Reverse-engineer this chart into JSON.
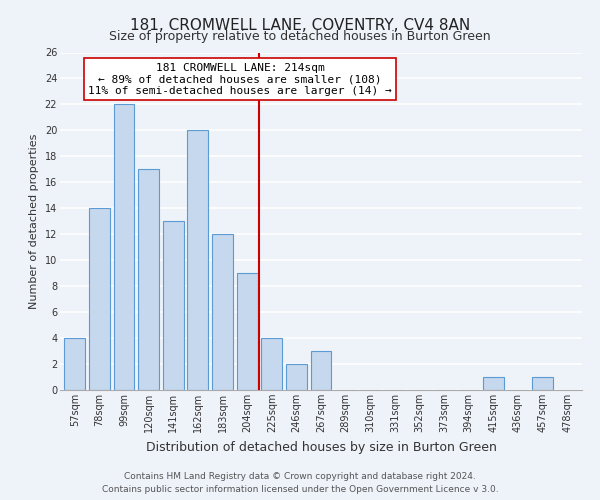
{
  "title": "181, CROMWELL LANE, COVENTRY, CV4 8AN",
  "subtitle": "Size of property relative to detached houses in Burton Green",
  "xlabel": "Distribution of detached houses by size in Burton Green",
  "ylabel": "Number of detached properties",
  "bar_labels": [
    "57sqm",
    "78sqm",
    "99sqm",
    "120sqm",
    "141sqm",
    "162sqm",
    "183sqm",
    "204sqm",
    "225sqm",
    "246sqm",
    "267sqm",
    "289sqm",
    "310sqm",
    "331sqm",
    "352sqm",
    "373sqm",
    "394sqm",
    "415sqm",
    "436sqm",
    "457sqm",
    "478sqm"
  ],
  "bar_values": [
    4,
    14,
    22,
    17,
    13,
    20,
    12,
    9,
    4,
    2,
    3,
    0,
    0,
    0,
    0,
    0,
    0,
    1,
    0,
    1,
    0
  ],
  "bar_color": "#c5d8ed",
  "bar_edge_color": "#5b9bd5",
  "vline_x": 7.5,
  "vline_color": "#cc0000",
  "annotation_line1": "181 CROMWELL LANE: 214sqm",
  "annotation_line2": "← 89% of detached houses are smaller (108)",
  "annotation_line3": "11% of semi-detached houses are larger (14) →",
  "annotation_box_edge_color": "#cc0000",
  "annotation_box_face_color": "#ffffff",
  "ylim": [
    0,
    26
  ],
  "yticks": [
    0,
    2,
    4,
    6,
    8,
    10,
    12,
    14,
    16,
    18,
    20,
    22,
    24,
    26
  ],
  "footer_text": "Contains HM Land Registry data © Crown copyright and database right 2024.\nContains public sector information licensed under the Open Government Licence v 3.0.",
  "background_color": "#eef2f9",
  "grid_color": "#ffffff",
  "title_fontsize": 11,
  "subtitle_fontsize": 9,
  "xlabel_fontsize": 9,
  "ylabel_fontsize": 8,
  "tick_fontsize": 7,
  "annotation_fontsize": 8,
  "footer_fontsize": 6.5
}
